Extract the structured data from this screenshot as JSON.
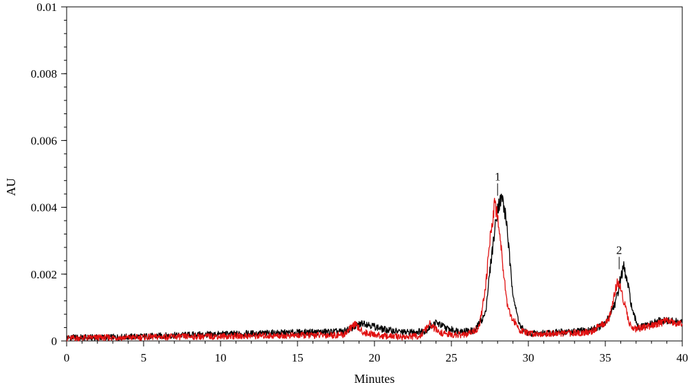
{
  "chart_data": {
    "type": "line",
    "title": "",
    "xlabel": "Minutes",
    "ylabel": "AU",
    "xlim": [
      0,
      40
    ],
    "ylim": [
      0,
      0.01
    ],
    "x_ticks": [
      0,
      5,
      10,
      15,
      20,
      25,
      30,
      35,
      40
    ],
    "x_tick_labels": [
      "0",
      "5",
      "10",
      "15",
      "20",
      "25",
      "30",
      "35",
      "40"
    ],
    "y_ticks": [
      0,
      0.002,
      0.004,
      0.006,
      0.008,
      0.01
    ],
    "y_tick_labels": [
      "0",
      "0.002",
      "0.004",
      "0.006",
      "0.008",
      "0.01"
    ],
    "grid": false,
    "legend": "none",
    "series": [
      {
        "color": "#000000",
        "x": [
          0,
          2,
          4,
          6,
          8,
          10,
          12,
          14,
          16,
          18,
          19.3,
          20.5,
          22,
          23.3,
          24,
          24.8,
          25.5,
          26.5,
          27.2,
          27.6,
          28.0,
          28.3,
          28.6,
          28.9,
          29.2,
          29.5,
          30,
          31,
          32,
          33,
          34,
          35,
          35.7,
          36.0,
          36.2,
          36.5,
          36.8,
          37.2,
          38,
          38.5,
          39,
          40
        ],
        "y": [
          0.0001,
          0.0001,
          0.00012,
          0.00015,
          0.00018,
          0.0002,
          0.00022,
          0.00024,
          0.00026,
          0.00028,
          0.00055,
          0.00035,
          0.00025,
          0.0003,
          0.00055,
          0.00035,
          0.0003,
          0.0003,
          0.0008,
          0.0025,
          0.004,
          0.0043,
          0.0035,
          0.0018,
          0.0009,
          0.0004,
          0.00022,
          0.00024,
          0.00026,
          0.00028,
          0.00032,
          0.0005,
          0.0012,
          0.0019,
          0.0022,
          0.0016,
          0.0008,
          0.0004,
          0.0005,
          0.0006,
          0.0006,
          0.00055
        ]
      },
      {
        "color": "#e01010",
        "x": [
          0,
          2,
          4,
          6,
          8,
          10,
          12,
          14,
          16,
          18,
          18.7,
          19.3,
          20.5,
          22,
          23,
          23.6,
          24.2,
          25,
          26,
          26.8,
          27.2,
          27.5,
          27.8,
          28.0,
          28.3,
          28.6,
          28.9,
          29.2,
          29.5,
          30,
          32,
          34,
          35.2,
          35.6,
          35.8,
          36.0,
          36.3,
          36.6,
          37.0,
          38,
          39,
          40
        ],
        "y": [
          8e-05,
          0.0001,
          0.0001,
          0.00012,
          0.00013,
          0.00014,
          0.00015,
          0.00016,
          0.00017,
          0.00018,
          0.0005,
          0.00025,
          0.00015,
          0.00012,
          0.00015,
          0.0005,
          0.00025,
          0.00018,
          0.00018,
          0.0004,
          0.0015,
          0.003,
          0.0041,
          0.0038,
          0.0025,
          0.0012,
          0.0007,
          0.0005,
          0.0003,
          0.00022,
          0.00022,
          0.00026,
          0.0006,
          0.0014,
          0.0018,
          0.0016,
          0.001,
          0.0005,
          0.00035,
          0.00045,
          0.0006,
          0.0005
        ]
      }
    ],
    "annotations": [
      {
        "text": "1",
        "x": 28.0,
        "y": 0.0048
      },
      {
        "text": "2",
        "x": 35.9,
        "y": 0.0026
      }
    ]
  }
}
